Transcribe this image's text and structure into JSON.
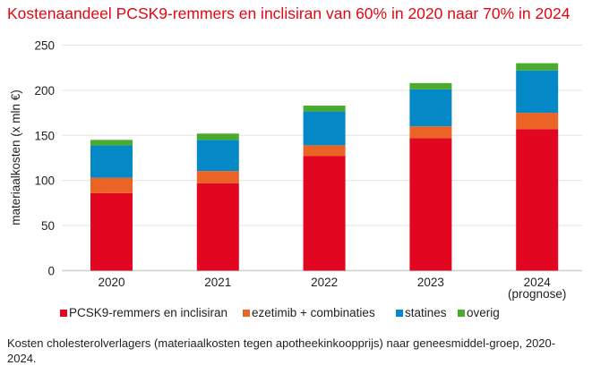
{
  "title": "Kostenaandeel PCSK9-remmers en inclisiran van 60% in 2020 naar 70% in 2024",
  "caption": "Kosten cholesterolverlagers (materiaalkosten tegen apotheekinkoopprijs) naar geneesmiddel-groep, 2020-2024.",
  "chart_data": {
    "type": "bar",
    "stacked": true,
    "title": "Kostenaandeel PCSK9-remmers en inclisiran van 60% in 2020 naar 70% in 2024",
    "xlabel": "",
    "ylabel": "materiaalkosten (x mln €)",
    "ylim": [
      0,
      250
    ],
    "yticks": [
      0,
      50,
      100,
      150,
      200,
      250
    ],
    "grid": true,
    "legend": "bottom",
    "categories": [
      "2020",
      "2021",
      "2022",
      "2023",
      "2024"
    ],
    "category_sublabels": [
      "",
      "",
      "",
      "",
      "(prognose)"
    ],
    "series": [
      {
        "name": "PCSK9-remmers en inclisiran",
        "color": "#e30620",
        "values": [
          86,
          97,
          127,
          147,
          157
        ]
      },
      {
        "name": "ezetimib + combinaties",
        "color": "#ec6425",
        "values": [
          17,
          13.5,
          12,
          13,
          18
        ]
      },
      {
        "name": "statines",
        "color": "#0489c6",
        "values": [
          36,
          34.5,
          37.5,
          41,
          47
        ]
      },
      {
        "name": "overig",
        "color": "#4aab2f",
        "values": [
          6,
          7,
          6.5,
          7,
          8
        ]
      }
    ]
  }
}
